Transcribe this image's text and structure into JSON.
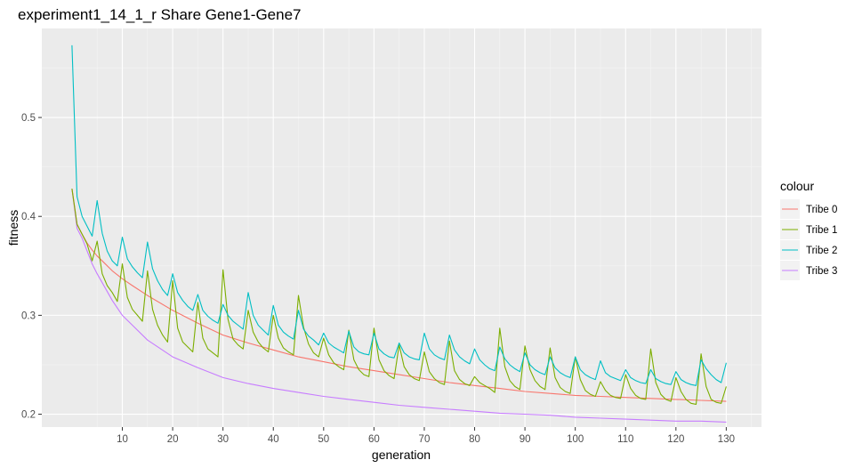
{
  "chart_data": {
    "type": "line",
    "title": "experiment1_14_1_r Share Gene1-Gene7",
    "xlabel": "generation",
    "ylabel": "fitness",
    "xlim": [
      -6,
      137
    ],
    "ylim": [
      0.187,
      0.59
    ],
    "x_ticks": [
      10,
      20,
      30,
      40,
      50,
      60,
      70,
      80,
      90,
      100,
      110,
      120,
      130
    ],
    "x_tick_labels": [
      "10",
      "20",
      "30",
      "40",
      "50",
      "60",
      "70",
      "80",
      "90",
      "100",
      "110",
      "120",
      "130"
    ],
    "y_ticks": [
      0.2,
      0.3,
      0.4,
      0.5
    ],
    "y_tick_labels": [
      "0.2",
      "0.3",
      "0.4",
      "0.5"
    ],
    "grid": true,
    "legend": {
      "title": "colour",
      "position": "right"
    },
    "series": [
      {
        "name": "Tribe 0",
        "color": "#F8766D",
        "x": [
          0,
          1,
          2,
          3,
          4,
          5,
          6,
          8,
          10,
          12,
          15,
          20,
          25,
          30,
          35,
          40,
          45,
          50,
          55,
          60,
          65,
          70,
          75,
          80,
          85,
          90,
          95,
          100,
          105,
          110,
          115,
          120,
          125,
          130
        ],
        "y": [
          0.428,
          0.392,
          0.382,
          0.373,
          0.366,
          0.36,
          0.355,
          0.345,
          0.337,
          0.33,
          0.32,
          0.305,
          0.292,
          0.28,
          0.272,
          0.265,
          0.258,
          0.253,
          0.248,
          0.244,
          0.24,
          0.236,
          0.232,
          0.229,
          0.226,
          0.223,
          0.221,
          0.219,
          0.218,
          0.217,
          0.216,
          0.215,
          0.214,
          0.213
        ]
      },
      {
        "name": "Tribe 1",
        "color": "#7CAE00",
        "x": [
          0,
          1,
          2,
          3,
          4,
          5,
          6,
          7,
          8,
          9,
          10,
          11,
          12,
          13,
          14,
          15,
          16,
          17,
          18,
          19,
          20,
          21,
          22,
          23,
          24,
          25,
          26,
          27,
          28,
          29,
          30,
          31,
          32,
          33,
          34,
          35,
          36,
          37,
          38,
          39,
          40,
          41,
          42,
          43,
          44,
          45,
          46,
          47,
          48,
          49,
          50,
          51,
          52,
          53,
          54,
          55,
          56,
          57,
          58,
          59,
          60,
          61,
          62,
          63,
          64,
          65,
          66,
          67,
          68,
          69,
          70,
          71,
          72,
          73,
          74,
          75,
          76,
          77,
          78,
          79,
          80,
          81,
          82,
          83,
          84,
          85,
          86,
          87,
          88,
          89,
          90,
          91,
          92,
          93,
          94,
          95,
          96,
          97,
          98,
          99,
          100,
          101,
          102,
          103,
          104,
          105,
          106,
          107,
          108,
          109,
          110,
          111,
          112,
          113,
          114,
          115,
          116,
          117,
          118,
          119,
          120,
          121,
          122,
          123,
          124,
          125,
          126,
          127,
          128,
          129,
          130
        ],
        "y": [
          0.428,
          0.392,
          0.382,
          0.372,
          0.355,
          0.375,
          0.342,
          0.33,
          0.323,
          0.314,
          0.352,
          0.318,
          0.306,
          0.3,
          0.294,
          0.345,
          0.306,
          0.29,
          0.28,
          0.273,
          0.335,
          0.287,
          0.273,
          0.268,
          0.263,
          0.313,
          0.277,
          0.266,
          0.262,
          0.258,
          0.346,
          0.296,
          0.276,
          0.27,
          0.266,
          0.305,
          0.283,
          0.273,
          0.267,
          0.263,
          0.3,
          0.277,
          0.267,
          0.263,
          0.26,
          0.32,
          0.288,
          0.271,
          0.262,
          0.258,
          0.277,
          0.26,
          0.252,
          0.248,
          0.245,
          0.285,
          0.255,
          0.245,
          0.24,
          0.238,
          0.287,
          0.255,
          0.244,
          0.239,
          0.236,
          0.27,
          0.248,
          0.24,
          0.236,
          0.234,
          0.263,
          0.243,
          0.236,
          0.232,
          0.23,
          0.274,
          0.244,
          0.235,
          0.231,
          0.229,
          0.238,
          0.232,
          0.229,
          0.226,
          0.222,
          0.287,
          0.248,
          0.234,
          0.228,
          0.225,
          0.269,
          0.245,
          0.234,
          0.228,
          0.225,
          0.267,
          0.237,
          0.227,
          0.223,
          0.221,
          0.258,
          0.235,
          0.224,
          0.22,
          0.218,
          0.233,
          0.224,
          0.219,
          0.217,
          0.216,
          0.24,
          0.226,
          0.219,
          0.216,
          0.215,
          0.266,
          0.232,
          0.22,
          0.215,
          0.213,
          0.237,
          0.223,
          0.215,
          0.211,
          0.21,
          0.261,
          0.228,
          0.215,
          0.212,
          0.211,
          0.228
        ]
      },
      {
        "name": "Tribe 2",
        "color": "#00BFC4",
        "x": [
          0,
          1,
          2,
          3,
          4,
          5,
          6,
          7,
          8,
          9,
          10,
          11,
          12,
          13,
          14,
          15,
          16,
          17,
          18,
          19,
          20,
          21,
          22,
          23,
          24,
          25,
          26,
          27,
          28,
          29,
          30,
          31,
          32,
          33,
          34,
          35,
          36,
          37,
          38,
          39,
          40,
          41,
          42,
          43,
          44,
          45,
          46,
          47,
          48,
          49,
          50,
          51,
          52,
          53,
          54,
          55,
          56,
          57,
          58,
          59,
          60,
          61,
          62,
          63,
          64,
          65,
          66,
          67,
          68,
          69,
          70,
          71,
          72,
          73,
          74,
          75,
          76,
          77,
          78,
          79,
          80,
          81,
          82,
          83,
          84,
          85,
          86,
          87,
          88,
          89,
          90,
          91,
          92,
          93,
          94,
          95,
          96,
          97,
          98,
          99,
          100,
          101,
          102,
          103,
          104,
          105,
          106,
          107,
          108,
          109,
          110,
          111,
          112,
          113,
          114,
          115,
          116,
          117,
          118,
          119,
          120,
          121,
          122,
          123,
          124,
          125,
          126,
          127,
          128,
          129,
          130
        ],
        "y": [
          0.573,
          0.42,
          0.4,
          0.39,
          0.38,
          0.416,
          0.383,
          0.365,
          0.355,
          0.35,
          0.379,
          0.357,
          0.349,
          0.343,
          0.338,
          0.374,
          0.347,
          0.335,
          0.326,
          0.32,
          0.342,
          0.323,
          0.315,
          0.309,
          0.305,
          0.321,
          0.305,
          0.299,
          0.295,
          0.292,
          0.311,
          0.3,
          0.294,
          0.29,
          0.286,
          0.323,
          0.3,
          0.29,
          0.285,
          0.28,
          0.31,
          0.29,
          0.283,
          0.279,
          0.276,
          0.305,
          0.286,
          0.279,
          0.275,
          0.27,
          0.282,
          0.272,
          0.268,
          0.265,
          0.262,
          0.284,
          0.268,
          0.263,
          0.261,
          0.26,
          0.282,
          0.266,
          0.261,
          0.258,
          0.257,
          0.272,
          0.262,
          0.258,
          0.256,
          0.255,
          0.282,
          0.266,
          0.26,
          0.257,
          0.255,
          0.28,
          0.265,
          0.258,
          0.254,
          0.251,
          0.266,
          0.255,
          0.25,
          0.246,
          0.244,
          0.268,
          0.256,
          0.25,
          0.246,
          0.243,
          0.262,
          0.25,
          0.245,
          0.242,
          0.24,
          0.258,
          0.247,
          0.242,
          0.239,
          0.237,
          0.258,
          0.245,
          0.24,
          0.237,
          0.235,
          0.254,
          0.242,
          0.238,
          0.236,
          0.234,
          0.245,
          0.237,
          0.234,
          0.232,
          0.231,
          0.245,
          0.236,
          0.233,
          0.231,
          0.23,
          0.243,
          0.235,
          0.232,
          0.23,
          0.229,
          0.255,
          0.246,
          0.24,
          0.235,
          0.232,
          0.252
        ]
      },
      {
        "name": "Tribe 3",
        "color": "#C77CFF",
        "x": [
          0,
          1,
          2,
          3,
          4,
          5,
          6,
          8,
          10,
          12,
          15,
          20,
          25,
          30,
          35,
          40,
          45,
          50,
          55,
          60,
          65,
          70,
          75,
          80,
          85,
          90,
          95,
          100,
          105,
          110,
          115,
          120,
          125,
          130
        ],
        "y": [
          0.428,
          0.388,
          0.378,
          0.365,
          0.352,
          0.342,
          0.333,
          0.315,
          0.3,
          0.29,
          0.275,
          0.258,
          0.247,
          0.237,
          0.231,
          0.226,
          0.222,
          0.218,
          0.215,
          0.212,
          0.209,
          0.207,
          0.205,
          0.203,
          0.201,
          0.2,
          0.199,
          0.197,
          0.196,
          0.195,
          0.194,
          0.193,
          0.193,
          0.192
        ]
      }
    ]
  }
}
